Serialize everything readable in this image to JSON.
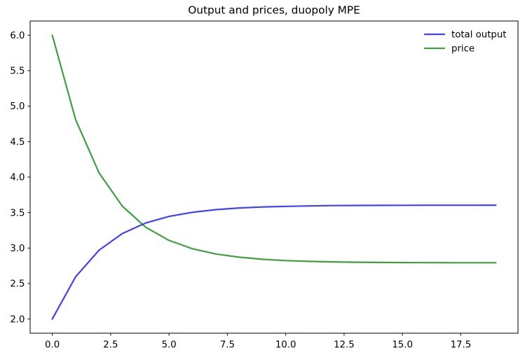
{
  "figure": {
    "background": "#ffffff"
  },
  "chart_data": {
    "type": "line",
    "title": "Output and prices, duopoly MPE",
    "xlabel": "",
    "ylabel": "",
    "grid": false,
    "x": [
      0,
      1,
      2,
      3,
      4,
      5,
      6,
      7,
      8,
      9,
      10,
      11,
      12,
      13,
      14,
      15,
      16,
      17,
      18,
      19
    ],
    "series": [
      {
        "name": "total output",
        "color": "#0000ff",
        "alpha": 0.75,
        "values": [
          2.0,
          2.595,
          2.969,
          3.205,
          3.353,
          3.446,
          3.504,
          3.541,
          3.565,
          3.579,
          3.588,
          3.594,
          3.598,
          3.6,
          3.601,
          3.602,
          3.603,
          3.603,
          3.603,
          3.604
        ]
      },
      {
        "name": "price",
        "color": "#008000",
        "alpha": 0.75,
        "values": [
          6.0,
          4.81,
          4.062,
          3.591,
          3.294,
          3.108,
          2.991,
          2.917,
          2.871,
          2.842,
          2.823,
          2.812,
          2.805,
          2.8,
          2.797,
          2.795,
          2.794,
          2.793,
          2.793,
          2.793
        ]
      }
    ],
    "xlim": [
      -0.95,
      19.95
    ],
    "ylim": [
      1.8,
      6.2
    ],
    "x_ticks": [
      0,
      2.5,
      5,
      7.5,
      10,
      12.5,
      15,
      17.5
    ],
    "x_tick_labels": [
      "0.0",
      "2.5",
      "5.0",
      "7.5",
      "10.0",
      "12.5",
      "15.0",
      "17.5"
    ],
    "y_ticks": [
      2.0,
      2.5,
      3.0,
      3.5,
      4.0,
      4.5,
      5.0,
      5.5,
      6.0
    ],
    "y_tick_labels": [
      "2.0",
      "2.5",
      "3.0",
      "3.5",
      "4.0",
      "4.5",
      "5.0",
      "5.5",
      "6.0"
    ],
    "legend": {
      "position": "upper-right",
      "frame": false,
      "entries": [
        "total output",
        "price"
      ]
    },
    "axis_color": "#000000",
    "text_color": "#000000",
    "line_width": 2
  }
}
